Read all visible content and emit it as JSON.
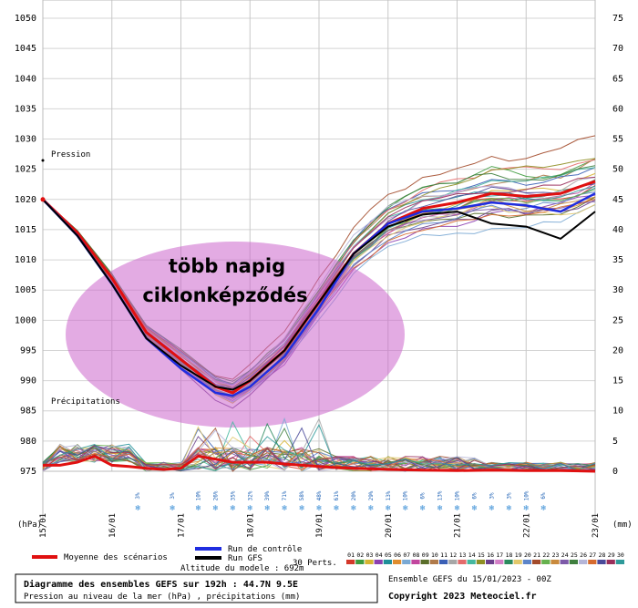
{
  "chart_data": {
    "type": "line",
    "title": "Diagramme des ensembles GEFS sur 192h : 44.7N 9.5E",
    "subtitle": "Pression au niveau de la mer (hPa) , précipitations (mm)",
    "altitude_label": "Altitude du modele : 692m",
    "run_label": "Ensemble GEFS du 15/01/2023 - 00Z",
    "copyright": "Copyright 2023 Meteociel.fr",
    "y_left_label": "(hPa)",
    "y_right_label": "(mm)",
    "pressure_series_label": "Pression",
    "precip_series_label": "Précipitations",
    "y_left_ticks": [
      975,
      980,
      985,
      990,
      995,
      1000,
      1005,
      1010,
      1015,
      1020,
      1025,
      1030,
      1035,
      1040,
      1045,
      1050
    ],
    "y_right_ticks": [
      0,
      5,
      10,
      15,
      20,
      25,
      30,
      35,
      40,
      45,
      50,
      55,
      60,
      65,
      70,
      75
    ],
    "y_left_range": [
      975,
      1050
    ],
    "y_right_range": [
      0,
      75
    ],
    "x_ticks": [
      "15/01",
      "16/01",
      "17/01",
      "18/01",
      "19/01",
      "20/01",
      "21/01",
      "22/01",
      "23/01"
    ],
    "x_range_hours": [
      0,
      192
    ],
    "snow_percent": [
      {
        "h": 33,
        "label": "3%"
      },
      {
        "h": 45,
        "label": "3%"
      },
      {
        "h": 54,
        "label": "10%"
      },
      {
        "h": 60,
        "label": "26%"
      },
      {
        "h": 66,
        "label": "35%"
      },
      {
        "h": 72,
        "label": "32%"
      },
      {
        "h": 78,
        "label": "39%"
      },
      {
        "h": 84,
        "label": "71%"
      },
      {
        "h": 90,
        "label": "58%"
      },
      {
        "h": 96,
        "label": "48%"
      },
      {
        "h": 102,
        "label": "61%"
      },
      {
        "h": 108,
        "label": "20%"
      },
      {
        "h": 114,
        "label": "29%"
      },
      {
        "h": 120,
        "label": "13%"
      },
      {
        "h": 126,
        "label": "10%"
      },
      {
        "h": 132,
        "label": "6%"
      },
      {
        "h": 138,
        "label": "13%"
      },
      {
        "h": 144,
        "label": "10%"
      },
      {
        "h": 150,
        "label": "6%"
      },
      {
        "h": 156,
        "label": "3%"
      },
      {
        "h": 162,
        "label": "3%"
      },
      {
        "h": 168,
        "label": "10%"
      },
      {
        "h": 174,
        "label": "6%"
      }
    ],
    "series": [
      {
        "name": "Moyenne des scénarios",
        "color": "#e01010",
        "x": [
          0,
          12,
          24,
          36,
          48,
          60,
          66,
          72,
          84,
          96,
          108,
          120,
          132,
          144,
          156,
          168,
          180,
          192
        ],
        "values": [
          1020,
          1014.5,
          1007,
          998,
          993.5,
          989,
          988,
          990,
          995,
          1003,
          1011,
          1016,
          1018.5,
          1019.5,
          1021,
          1020.5,
          1021,
          1023
        ]
      },
      {
        "name": "Run de contrôle",
        "color": "#1f2de0",
        "x": [
          0,
          12,
          24,
          36,
          48,
          60,
          66,
          72,
          84,
          96,
          108,
          120,
          132,
          144,
          156,
          168,
          180,
          192
        ],
        "values": [
          1020,
          1014,
          1006,
          997,
          992,
          988,
          987.5,
          989,
          994,
          1002,
          1011,
          1016,
          1018,
          1018.5,
          1019.5,
          1019,
          1018,
          1021
        ]
      },
      {
        "name": "Run GFS",
        "color": "#000000",
        "x": [
          0,
          12,
          24,
          36,
          48,
          60,
          66,
          72,
          84,
          96,
          108,
          120,
          132,
          144,
          156,
          168,
          180,
          192
        ],
        "values": [
          1020,
          1014,
          1006,
          997,
          992.5,
          989,
          988.5,
          990,
          995,
          1003,
          1011,
          1015.5,
          1017.5,
          1018,
          1016,
          1015.5,
          1013.5,
          1018
        ]
      }
    ],
    "precip_mean": {
      "x": [
        0,
        6,
        12,
        18,
        24,
        30,
        36,
        42,
        48,
        54,
        60,
        66,
        72,
        78,
        84,
        90,
        96,
        102,
        108,
        114,
        120,
        132,
        144,
        156,
        168,
        180,
        192
      ],
      "values": [
        1,
        1,
        1.5,
        2.5,
        1,
        0.8,
        0.5,
        0.3,
        0.5,
        2.5,
        2,
        1.5,
        1.5,
        1.5,
        1.2,
        1,
        0.8,
        0.6,
        0.5,
        0.4,
        0.3,
        0.2,
        0.1,
        0.2,
        0.1,
        0.1,
        0
      ]
    },
    "perturbations_label": "30 Perts.",
    "perturbation_numbers": [
      "01",
      "02",
      "03",
      "04",
      "05",
      "06",
      "07",
      "08",
      "09",
      "10",
      "11",
      "12",
      "13",
      "14",
      "15",
      "16",
      "17",
      "18",
      "19",
      "20",
      "21",
      "22",
      "23",
      "24",
      "25",
      "26",
      "27",
      "28",
      "29",
      "30"
    ],
    "perturbation_colors": [
      "#d4382a",
      "#3d9b3d",
      "#d6b431",
      "#8c3fb0",
      "#1f8f99",
      "#e08d2e",
      "#7aa9d4",
      "#c2469e",
      "#5a6e2a",
      "#b07a4a",
      "#3a5fb5",
      "#a7a7a7",
      "#e46b6b",
      "#45b89f",
      "#8f8f23",
      "#6b3f8c",
      "#d47fc7",
      "#2b8a5e",
      "#e2c86b",
      "#5c84c9",
      "#a34b2b",
      "#66b14e",
      "#c98a3d",
      "#7d5aa9",
      "#3f7f3f",
      "#b5b5d8",
      "#d66a2e",
      "#4a4a9a",
      "#9a2e5a",
      "#2e9a9a"
    ],
    "annotation": {
      "line1": "több napig",
      "line2": "ciklonképződés"
    }
  },
  "legend": {
    "mean_label": "Moyenne des scénarios",
    "control_label": "Run de contrôle",
    "gfs_label": "Run GFS"
  }
}
